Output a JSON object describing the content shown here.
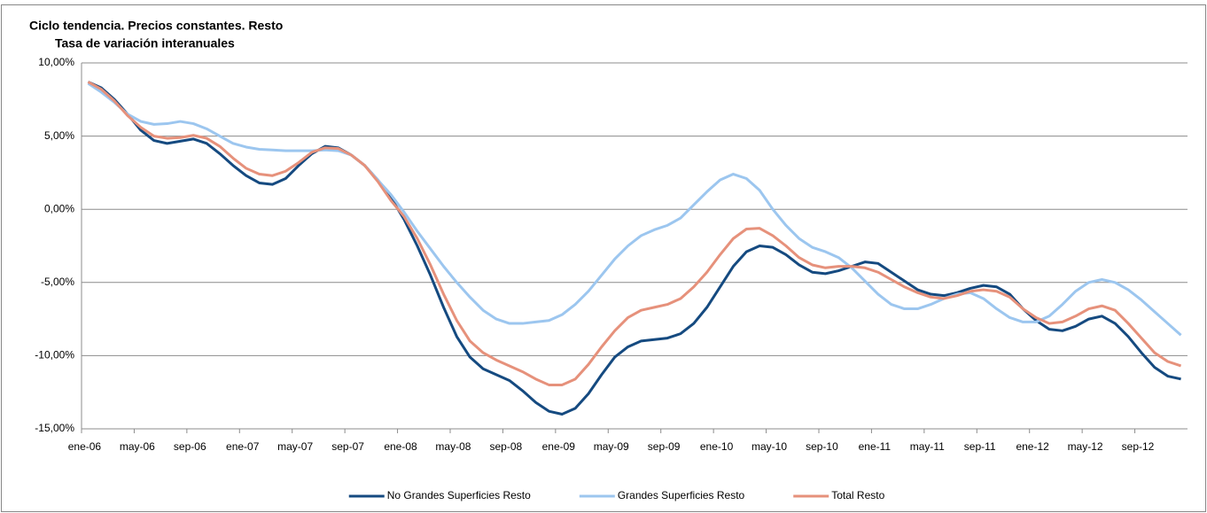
{
  "chart_data": {
    "type": "line",
    "title": "Ciclo tendencia. Precios constantes. Resto",
    "subtitle": "Tasa  de variación interanuales",
    "categories": [
      "ene-06",
      null,
      null,
      null,
      "may-06",
      null,
      null,
      null,
      "sep-06",
      null,
      null,
      null,
      "ene-07",
      null,
      null,
      null,
      "may-07",
      null,
      null,
      null,
      "sep-07",
      null,
      null,
      null,
      "ene-08",
      null,
      null,
      null,
      "may-08",
      null,
      null,
      null,
      "sep-08",
      null,
      null,
      null,
      "ene-09",
      null,
      null,
      null,
      "may-09",
      null,
      null,
      null,
      "sep-09",
      null,
      null,
      null,
      "ene-10",
      null,
      null,
      null,
      "may-10",
      null,
      null,
      null,
      "sep-10",
      null,
      null,
      null,
      "ene-11",
      null,
      null,
      null,
      "may-11",
      null,
      null,
      null,
      "sep-11",
      null,
      null,
      null,
      "ene-12",
      null,
      null,
      null,
      "may-12",
      null,
      null,
      null,
      "sep-12",
      null,
      null,
      null
    ],
    "series": [
      {
        "name": "No Grandes Superficies Resto",
        "color": "#154a80",
        "values": [
          8.7,
          8.3,
          7.5,
          6.5,
          5.4,
          4.7,
          4.5,
          4.65,
          4.8,
          4.5,
          3.8,
          3.0,
          2.3,
          1.8,
          1.7,
          2.1,
          3.0,
          3.8,
          4.3,
          4.2,
          3.7,
          3.0,
          2.0,
          0.8,
          -0.7,
          -2.5,
          -4.5,
          -6.7,
          -8.7,
          -10.1,
          -10.9,
          -11.3,
          -11.7,
          -12.4,
          -13.2,
          -13.8,
          -14.0,
          -13.6,
          -12.6,
          -11.3,
          -10.1,
          -9.4,
          -9.0,
          -8.9,
          -8.8,
          -8.5,
          -7.8,
          -6.7,
          -5.3,
          -3.9,
          -2.9,
          -2.5,
          -2.6,
          -3.1,
          -3.8,
          -4.3,
          -4.4,
          -4.2,
          -3.9,
          -3.6,
          -3.7,
          -4.3,
          -4.9,
          -5.5,
          -5.8,
          -5.9,
          -5.7,
          -5.4,
          -5.2,
          -5.3,
          -5.8,
          -6.8,
          -7.6,
          -8.2,
          -8.3,
          -8.0,
          -7.5,
          -7.3,
          -7.8,
          -8.7,
          -9.8,
          -10.8,
          -11.4,
          -11.6
        ]
      },
      {
        "name": "Grandes Superficies Resto",
        "color": "#9cc6ef",
        "values": [
          8.6,
          8.0,
          7.3,
          6.5,
          6.0,
          5.8,
          5.85,
          6.0,
          5.85,
          5.5,
          5.0,
          4.5,
          4.25,
          4.1,
          4.05,
          4.0,
          4.0,
          4.0,
          4.05,
          4.0,
          3.7,
          3.0,
          2.0,
          1.0,
          -0.2,
          -1.5,
          -2.7,
          -3.9,
          -5.0,
          -6.0,
          -6.9,
          -7.5,
          -7.8,
          -7.8,
          -7.7,
          -7.6,
          -7.2,
          -6.5,
          -5.6,
          -4.5,
          -3.4,
          -2.5,
          -1.8,
          -1.4,
          -1.1,
          -0.6,
          0.3,
          1.2,
          2.0,
          2.4,
          2.1,
          1.3,
          0.0,
          -1.1,
          -2.0,
          -2.6,
          -2.9,
          -3.3,
          -4.0,
          -4.9,
          -5.8,
          -6.5,
          -6.8,
          -6.8,
          -6.5,
          -6.1,
          -5.8,
          -5.7,
          -6.1,
          -6.8,
          -7.4,
          -7.7,
          -7.7,
          -7.3,
          -6.5,
          -5.6,
          -5.0,
          -4.8,
          -5.0,
          -5.5,
          -6.2,
          -7.0,
          -7.8,
          -8.6
        ]
      },
      {
        "name": "Total Resto",
        "color": "#e6917b",
        "values": [
          8.7,
          8.2,
          7.4,
          6.4,
          5.6,
          5.0,
          4.85,
          4.9,
          5.05,
          4.85,
          4.3,
          3.5,
          2.8,
          2.4,
          2.3,
          2.6,
          3.2,
          3.9,
          4.2,
          4.15,
          3.7,
          3.0,
          1.9,
          0.6,
          -0.5,
          -2.0,
          -3.8,
          -5.8,
          -7.6,
          -9.0,
          -9.8,
          -10.3,
          -10.7,
          -11.1,
          -11.6,
          -12.0,
          -12.0,
          -11.6,
          -10.6,
          -9.4,
          -8.3,
          -7.4,
          -6.9,
          -6.7,
          -6.5,
          -6.1,
          -5.3,
          -4.3,
          -3.1,
          -2.0,
          -1.35,
          -1.3,
          -1.8,
          -2.5,
          -3.3,
          -3.8,
          -4.0,
          -3.9,
          -3.9,
          -4.0,
          -4.3,
          -4.8,
          -5.3,
          -5.7,
          -6.0,
          -6.1,
          -5.9,
          -5.6,
          -5.5,
          -5.6,
          -6.0,
          -6.8,
          -7.4,
          -7.8,
          -7.7,
          -7.3,
          -6.8,
          -6.6,
          -6.9,
          -7.8,
          -8.8,
          -9.8,
          -10.4,
          -10.7
        ]
      }
    ],
    "ylim": [
      -15,
      10
    ],
    "yticks": [
      {
        "value": -15,
        "label": "-15,00%"
      },
      {
        "value": -10,
        "label": "-10,00%"
      },
      {
        "value": -5,
        "label": "-5,00%"
      },
      {
        "value": 0,
        "label": "0,00%"
      },
      {
        "value": 5,
        "label": "5,00%"
      },
      {
        "value": 10,
        "label": "10,00%"
      }
    ],
    "grid": true,
    "legend": "bottom"
  }
}
